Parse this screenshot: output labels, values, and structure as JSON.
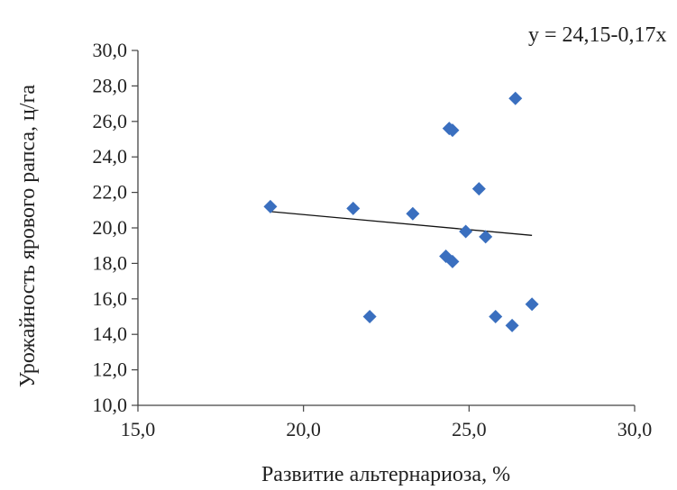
{
  "chart_data": {
    "type": "scatter",
    "title": "",
    "xlabel": "Развитие альтернариоза, %",
    "ylabel": "Урожайность ярового рапса, ц/га",
    "xlim": [
      15,
      30
    ],
    "ylim": [
      10,
      30
    ],
    "x_ticks": [
      15,
      20,
      25,
      30
    ],
    "x_tick_labels": [
      "15,0",
      "20,0",
      "25,0",
      "30,0"
    ],
    "y_ticks": [
      10,
      12,
      14,
      16,
      18,
      20,
      22,
      24,
      26,
      28,
      30
    ],
    "y_tick_labels": [
      "10,0",
      "12,0",
      "14,0",
      "16,0",
      "18,0",
      "20,0",
      "22,0",
      "24,0",
      "26,0",
      "28,0",
      "30,0"
    ],
    "grid": false,
    "legend": "none",
    "marker": "diamond",
    "marker_color": "#3a6fbf",
    "trendline_color": "#111111",
    "points": [
      {
        "x": 19.0,
        "y": 21.2
      },
      {
        "x": 21.5,
        "y": 21.1
      },
      {
        "x": 22.0,
        "y": 15.0
      },
      {
        "x": 23.3,
        "y": 20.8
      },
      {
        "x": 24.3,
        "y": 18.4
      },
      {
        "x": 24.4,
        "y": 25.6
      },
      {
        "x": 24.5,
        "y": 25.5
      },
      {
        "x": 24.5,
        "y": 18.1
      },
      {
        "x": 24.9,
        "y": 19.8
      },
      {
        "x": 25.3,
        "y": 22.2
      },
      {
        "x": 25.5,
        "y": 19.5
      },
      {
        "x": 25.8,
        "y": 15.0
      },
      {
        "x": 26.3,
        "y": 14.5
      },
      {
        "x": 26.4,
        "y": 27.3
      },
      {
        "x": 26.9,
        "y": 15.7
      }
    ],
    "trendline": {
      "equation": "y = 24,15-0,17x",
      "intercept": 24.15,
      "slope": -0.17,
      "x_range": [
        19.0,
        26.9
      ]
    }
  }
}
